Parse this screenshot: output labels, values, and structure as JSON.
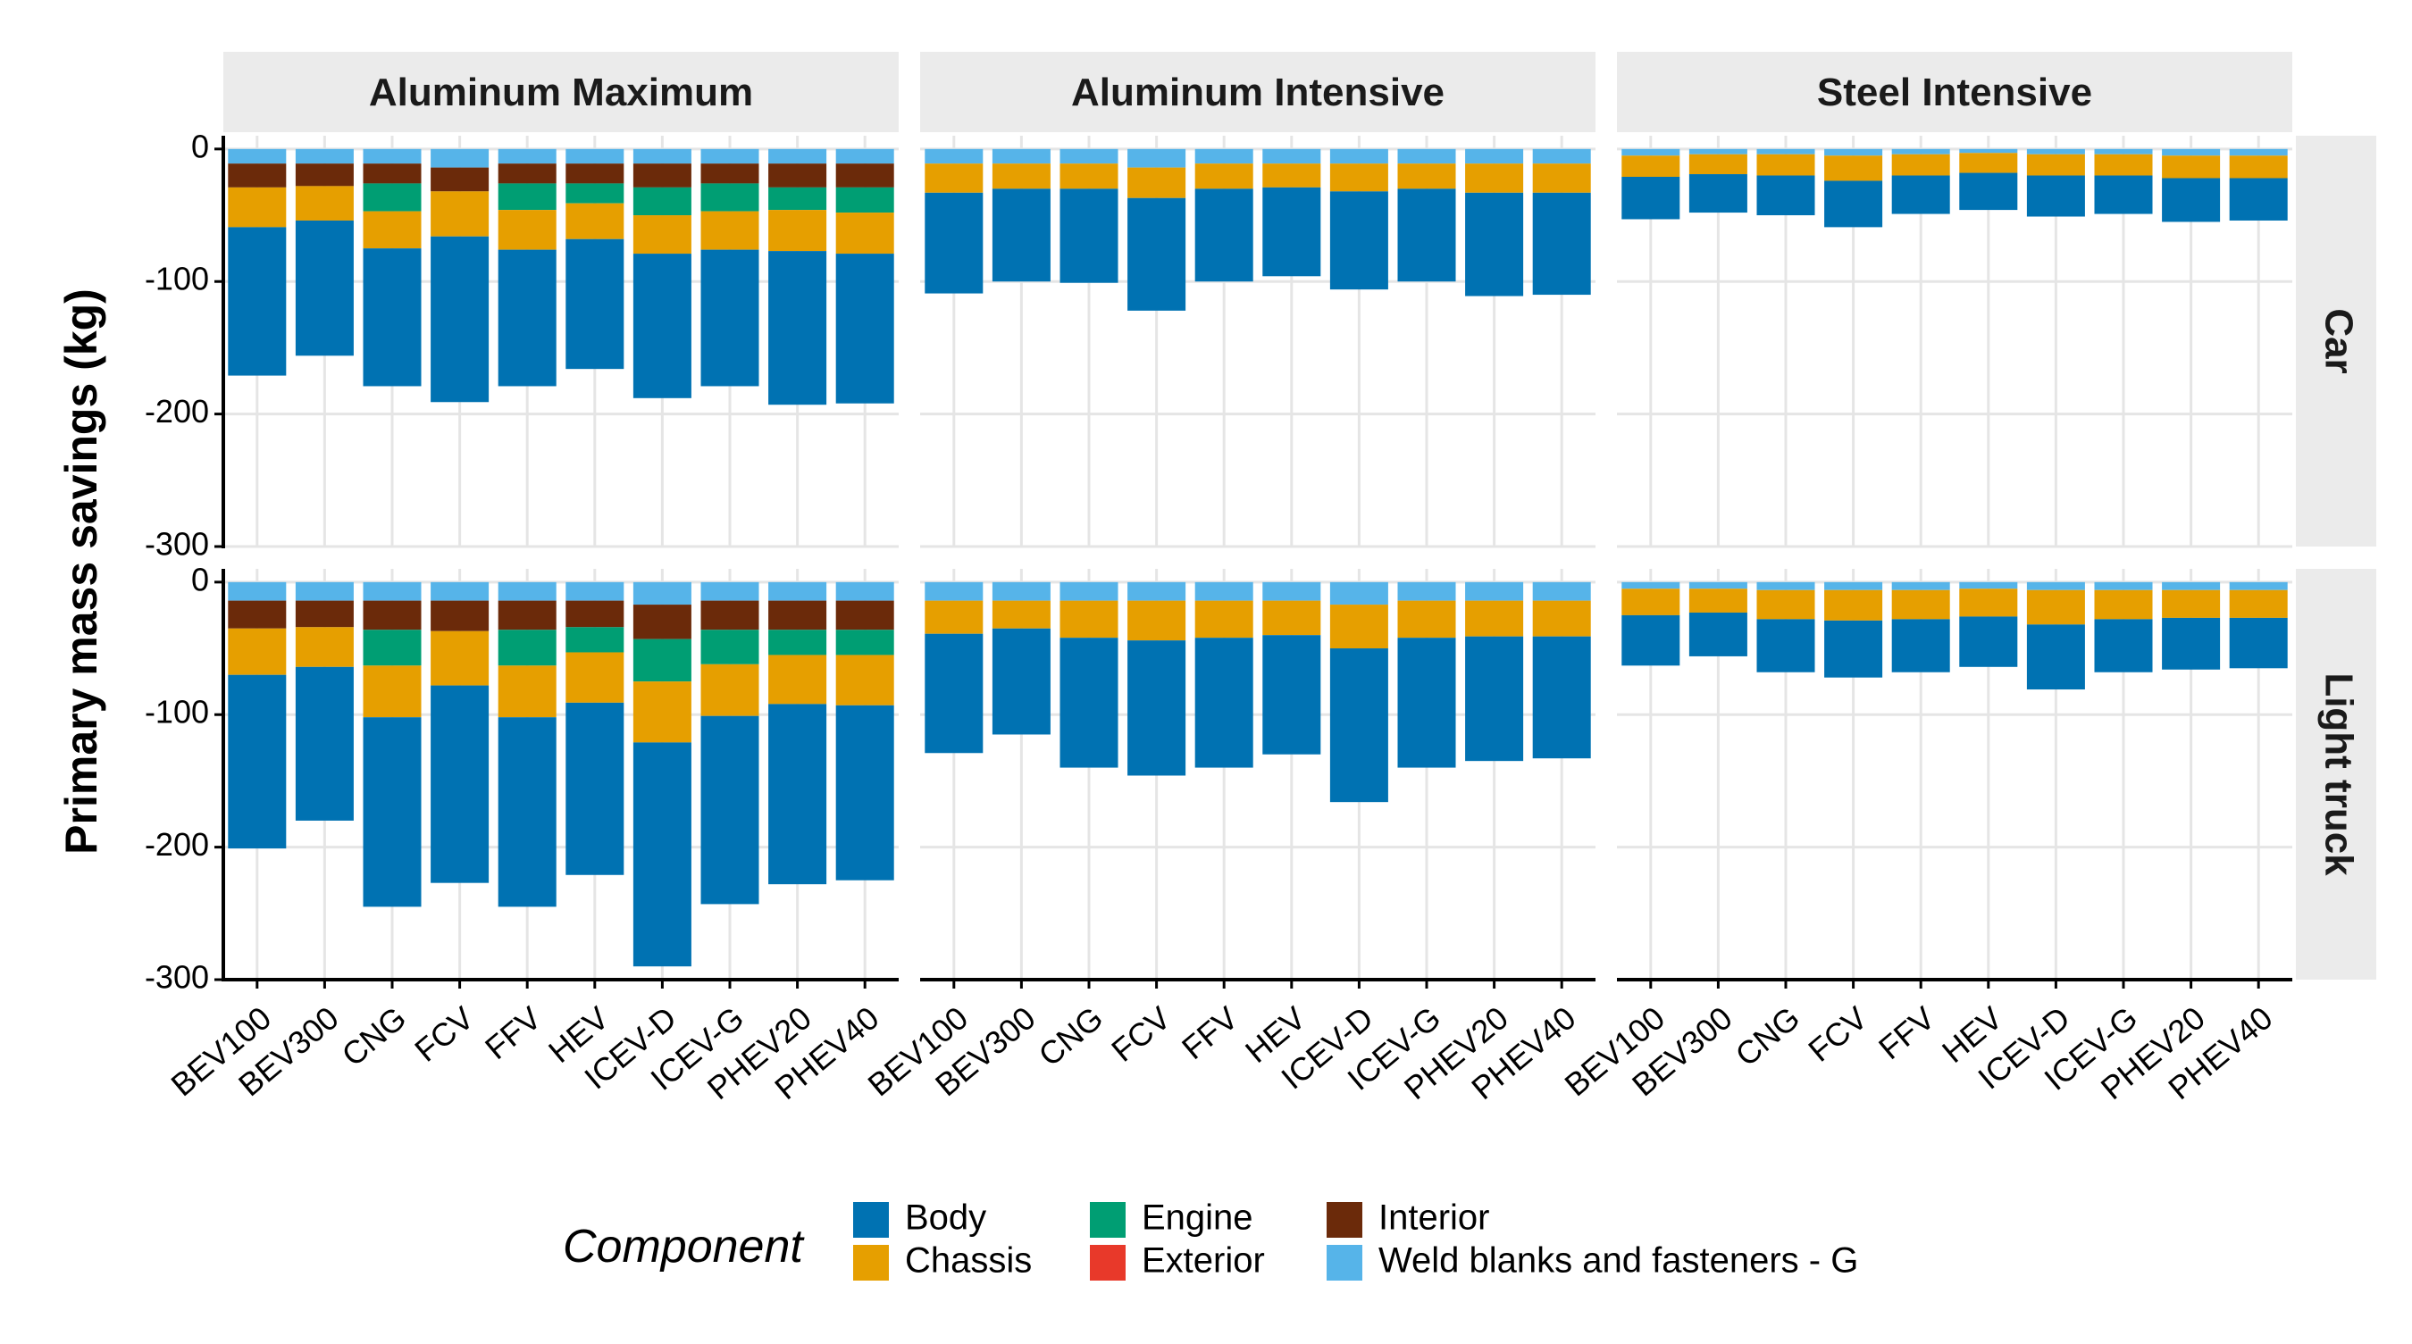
{
  "chart_data": {
    "type": "bar",
    "subtype": "stacked-negative-faceted",
    "ylabel": "Primary mass savings (kg)",
    "xlabel": "",
    "ylim": [
      -300,
      10
    ],
    "yticks": [
      0,
      -100,
      -200,
      -300
    ],
    "grid": true,
    "legend_position": "bottom",
    "legend_title": "Component",
    "categories": [
      "BEV100",
      "BEV300",
      "CNG",
      "FCV",
      "FFV",
      "HEV",
      "ICEV-D",
      "ICEV-G",
      "PHEV20",
      "PHEV40"
    ],
    "components": [
      {
        "name": "Body",
        "color": "#0072B2"
      },
      {
        "name": "Chassis",
        "color": "#E69F00"
      },
      {
        "name": "Engine",
        "color": "#009E73"
      },
      {
        "name": "Exterior",
        "color": "#E8392A"
      },
      {
        "name": "Interior",
        "color": "#6B2A0A"
      },
      {
        "name": "Weld blanks and fasteners - G",
        "color": "#56B4E9"
      }
    ],
    "stack_order": [
      "Weld blanks and fasteners - G",
      "Interior",
      "Engine",
      "Chassis",
      "Body"
    ],
    "columns": [
      "Aluminum Maximum",
      "Aluminum Intensive",
      "Steel Intensive"
    ],
    "rows": [
      "Car",
      "Light truck"
    ],
    "facets": [
      {
        "column": "Aluminum Maximum",
        "row": "Car",
        "series": [
          {
            "name": "Weld blanks and fasteners - G",
            "values": [
              -11,
              -11,
              -11,
              -14,
              -11,
              -11,
              -11,
              -11,
              -11,
              -11
            ]
          },
          {
            "name": "Interior",
            "values": [
              -18,
              -17,
              -15,
              -18,
              -15,
              -15,
              -18,
              -15,
              -18,
              -18
            ]
          },
          {
            "name": "Engine",
            "values": [
              0,
              0,
              -21,
              0,
              -20,
              -15,
              -21,
              -21,
              -17,
              -19
            ]
          },
          {
            "name": "Chassis",
            "values": [
              -30,
              -26,
              -28,
              -34,
              -30,
              -27,
              -29,
              -29,
              -31,
              -31
            ]
          },
          {
            "name": "Body",
            "values": [
              -112,
              -102,
              -104,
              -125,
              -103,
              -98,
              -109,
              -103,
              -116,
              -113
            ]
          }
        ]
      },
      {
        "column": "Aluminum Intensive",
        "row": "Car",
        "series": [
          {
            "name": "Weld blanks and fasteners - G",
            "values": [
              -11,
              -11,
              -11,
              -14,
              -11,
              -11,
              -11,
              -11,
              -11,
              -11
            ]
          },
          {
            "name": "Interior",
            "values": [
              0,
              0,
              0,
              0,
              0,
              0,
              0,
              0,
              0,
              0
            ]
          },
          {
            "name": "Engine",
            "values": [
              0,
              0,
              0,
              0,
              0,
              0,
              0,
              0,
              0,
              0
            ]
          },
          {
            "name": "Chassis",
            "values": [
              -22,
              -19,
              -19,
              -23,
              -19,
              -18,
              -21,
              -19,
              -22,
              -22
            ]
          },
          {
            "name": "Body",
            "values": [
              -76,
              -70,
              -71,
              -85,
              -70,
              -67,
              -74,
              -70,
              -78,
              -77
            ]
          }
        ]
      },
      {
        "column": "Steel Intensive",
        "row": "Car",
        "series": [
          {
            "name": "Weld blanks and fasteners - G",
            "values": [
              -5,
              -4,
              -4,
              -5,
              -4,
              -3,
              -4,
              -4,
              -5,
              -5
            ]
          },
          {
            "name": "Interior",
            "values": [
              0,
              0,
              0,
              0,
              0,
              0,
              0,
              0,
              0,
              0
            ]
          },
          {
            "name": "Engine",
            "values": [
              0,
              0,
              0,
              0,
              0,
              0,
              0,
              0,
              0,
              0
            ]
          },
          {
            "name": "Chassis",
            "values": [
              -16,
              -15,
              -16,
              -19,
              -16,
              -15,
              -16,
              -16,
              -17,
              -17
            ]
          },
          {
            "name": "Body",
            "values": [
              -32,
              -29,
              -30,
              -35,
              -29,
              -28,
              -31,
              -29,
              -33,
              -32
            ]
          }
        ]
      },
      {
        "column": "Aluminum Maximum",
        "row": "Light truck",
        "series": [
          {
            "name": "Weld blanks and fasteners - G",
            "values": [
              -14,
              -14,
              -14,
              -14,
              -14,
              -14,
              -17,
              -14,
              -14,
              -14
            ]
          },
          {
            "name": "Interior",
            "values": [
              -21,
              -20,
              -22,
              -23,
              -22,
              -20,
              -26,
              -22,
              -22,
              -22
            ]
          },
          {
            "name": "Engine",
            "values": [
              0,
              0,
              -27,
              0,
              -27,
              -19,
              -32,
              -26,
              -19,
              -19
            ]
          },
          {
            "name": "Chassis",
            "values": [
              -35,
              -30,
              -39,
              -41,
              -39,
              -38,
              -46,
              -39,
              -37,
              -38
            ]
          },
          {
            "name": "Body",
            "values": [
              -131,
              -116,
              -143,
              -149,
              -143,
              -130,
              -169,
              -142,
              -136,
              -132
            ]
          }
        ]
      },
      {
        "column": "Aluminum Intensive",
        "row": "Light truck",
        "series": [
          {
            "name": "Weld blanks and fasteners - G",
            "values": [
              -14,
              -14,
              -14,
              -14,
              -14,
              -14,
              -17,
              -14,
              -14,
              -14
            ]
          },
          {
            "name": "Interior",
            "values": [
              0,
              0,
              0,
              0,
              0,
              0,
              0,
              0,
              0,
              0
            ]
          },
          {
            "name": "Engine",
            "values": [
              0,
              0,
              0,
              0,
              0,
              0,
              0,
              0,
              0,
              0
            ]
          },
          {
            "name": "Chassis",
            "values": [
              -25,
              -21,
              -28,
              -30,
              -28,
              -26,
              -33,
              -28,
              -27,
              -27
            ]
          },
          {
            "name": "Body",
            "values": [
              -90,
              -80,
              -98,
              -102,
              -98,
              -90,
              -116,
              -98,
              -94,
              -92
            ]
          }
        ]
      },
      {
        "column": "Steel Intensive",
        "row": "Light truck",
        "series": [
          {
            "name": "Weld blanks and fasteners - G",
            "values": [
              -5,
              -5,
              -6,
              -6,
              -6,
              -5,
              -6,
              -6,
              -6,
              -6
            ]
          },
          {
            "name": "Interior",
            "values": [
              0,
              0,
              0,
              0,
              0,
              0,
              0,
              0,
              0,
              0
            ]
          },
          {
            "name": "Engine",
            "values": [
              0,
              0,
              0,
              0,
              0,
              0,
              0,
              0,
              0,
              0
            ]
          },
          {
            "name": "Chassis",
            "values": [
              -20,
              -18,
              -22,
              -23,
              -22,
              -21,
              -26,
              -22,
              -21,
              -21
            ]
          },
          {
            "name": "Body",
            "values": [
              -38,
              -33,
              -40,
              -43,
              -40,
              -38,
              -49,
              -40,
              -39,
              -38
            ]
          }
        ]
      }
    ]
  }
}
